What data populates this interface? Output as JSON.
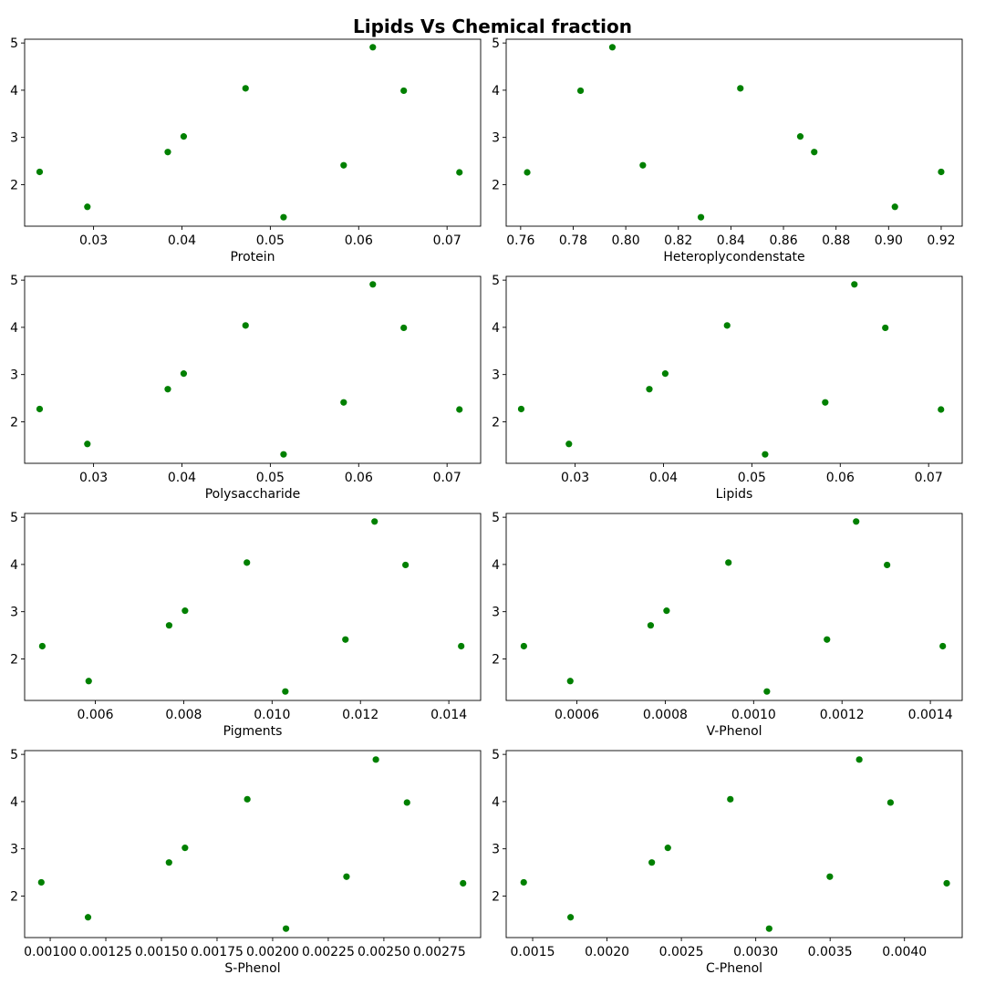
{
  "title": "Lipids Vs Chemical fraction",
  "colors": {
    "point": "#008000",
    "axis": "#000000",
    "background": "#ffffff"
  },
  "chart_data": [
    {
      "type": "scatter",
      "xlabel": "Protein",
      "grid": false,
      "xlim": [
        0.0222,
        0.0738
      ],
      "ylim": [
        1.12,
        5.08
      ],
      "xticks": [
        0.03,
        0.04,
        0.05,
        0.06,
        0.07
      ],
      "xtick_labels": [
        "0.03",
        "0.04",
        "0.05",
        "0.06",
        "0.07"
      ],
      "yticks": [
        2,
        3,
        4,
        5
      ],
      "ytick_labels": [
        "2",
        "3",
        "4",
        "5"
      ],
      "x": [
        0.0239,
        0.0293,
        0.0384,
        0.0402,
        0.0472,
        0.0515,
        0.0583,
        0.0616,
        0.0651,
        0.0714
      ],
      "y": [
        2.27,
        1.53,
        2.69,
        3.02,
        4.04,
        1.31,
        2.41,
        4.91,
        3.99,
        2.26
      ]
    },
    {
      "type": "scatter",
      "xlabel": "Heteroplycondenstate",
      "grid": false,
      "xlim": [
        0.7545,
        0.928
      ],
      "ylim": [
        1.12,
        5.08
      ],
      "xticks": [
        0.76,
        0.78,
        0.8,
        0.82,
        0.84,
        0.86,
        0.88,
        0.9,
        0.92
      ],
      "xtick_labels": [
        "0.76",
        "0.78",
        "0.80",
        "0.82",
        "0.84",
        "0.86",
        "0.88",
        "0.90",
        "0.92"
      ],
      "yticks": [
        2,
        3,
        4,
        5
      ],
      "ytick_labels": [
        "2",
        "3",
        "4",
        "5"
      ],
      "x": [
        0.7625,
        0.7828,
        0.7949,
        0.8065,
        0.8286,
        0.8436,
        0.8664,
        0.8717,
        0.9024,
        0.92
      ],
      "y": [
        2.26,
        3.99,
        4.91,
        2.41,
        1.31,
        4.04,
        3.02,
        2.69,
        1.53,
        2.27
      ]
    },
    {
      "type": "scatter",
      "xlabel": "Polysaccharide",
      "grid": false,
      "xlim": [
        0.0222,
        0.0738
      ],
      "ylim": [
        1.12,
        5.08
      ],
      "xticks": [
        0.03,
        0.04,
        0.05,
        0.06,
        0.07
      ],
      "xtick_labels": [
        "0.03",
        "0.04",
        "0.05",
        "0.06",
        "0.07"
      ],
      "yticks": [
        2,
        3,
        4,
        5
      ],
      "ytick_labels": [
        "2",
        "3",
        "4",
        "5"
      ],
      "x": [
        0.0239,
        0.0293,
        0.0384,
        0.0402,
        0.0472,
        0.0515,
        0.0583,
        0.0616,
        0.0651,
        0.0714
      ],
      "y": [
        2.27,
        1.53,
        2.69,
        3.02,
        4.04,
        1.31,
        2.41,
        4.91,
        3.99,
        2.26
      ]
    },
    {
      "type": "scatter",
      "xlabel": "Lipids",
      "grid": false,
      "xlim": [
        0.0222,
        0.0738
      ],
      "ylim": [
        1.12,
        5.08
      ],
      "xticks": [
        0.03,
        0.04,
        0.05,
        0.06,
        0.07
      ],
      "xtick_labels": [
        "0.03",
        "0.04",
        "0.05",
        "0.06",
        "0.07"
      ],
      "yticks": [
        2,
        3,
        4,
        5
      ],
      "ytick_labels": [
        "2",
        "3",
        "4",
        "5"
      ],
      "x": [
        0.0239,
        0.0293,
        0.0384,
        0.0402,
        0.0472,
        0.0515,
        0.0583,
        0.0616,
        0.0651,
        0.0714
      ],
      "y": [
        2.27,
        1.53,
        2.69,
        3.02,
        4.04,
        1.31,
        2.41,
        4.91,
        3.99,
        2.26
      ]
    },
    {
      "type": "scatter",
      "xlabel": "Pigments",
      "grid": false,
      "xlim": [
        0.0044,
        0.01472
      ],
      "ylim": [
        1.12,
        5.08
      ],
      "xticks": [
        0.006,
        0.008,
        0.01,
        0.012,
        0.014
      ],
      "xtick_labels": [
        "0.006",
        "0.008",
        "0.010",
        "0.012",
        "0.014"
      ],
      "yticks": [
        2,
        3,
        4,
        5
      ],
      "ytick_labels": [
        "2",
        "3",
        "4",
        "5"
      ],
      "x": [
        0.0048,
        0.00585,
        0.00767,
        0.00803,
        0.00943,
        0.0103,
        0.01166,
        0.01232,
        0.01302,
        0.01428
      ],
      "y": [
        2.27,
        1.53,
        2.71,
        3.02,
        4.04,
        1.31,
        2.41,
        4.91,
        3.99,
        2.27
      ]
    },
    {
      "type": "scatter",
      "xlabel": "V-Phenol",
      "grid": false,
      "xlim": [
        0.00044,
        0.001472
      ],
      "ylim": [
        1.12,
        5.08
      ],
      "xticks": [
        0.0006,
        0.0008,
        0.001,
        0.0012,
        0.0014
      ],
      "xtick_labels": [
        "0.0006",
        "0.0008",
        "0.0010",
        "0.0012",
        "0.0014"
      ],
      "yticks": [
        2,
        3,
        4,
        5
      ],
      "ytick_labels": [
        "2",
        "3",
        "4",
        "5"
      ],
      "x": [
        0.00048,
        0.000585,
        0.000767,
        0.000803,
        0.000943,
        0.00103,
        0.001166,
        0.001232,
        0.001302,
        0.001428
      ],
      "y": [
        2.27,
        1.53,
        2.71,
        3.02,
        4.04,
        1.31,
        2.41,
        4.91,
        3.99,
        2.27
      ]
    },
    {
      "type": "scatter",
      "xlabel": "S-Phenol",
      "grid": false,
      "xlim": [
        0.000885,
        0.002935
      ],
      "ylim": [
        1.12,
        5.08
      ],
      "xticks": [
        0.001,
        0.00125,
        0.0015,
        0.00175,
        0.002,
        0.00225,
        0.0025,
        0.00275
      ],
      "xtick_labels": [
        "0.00100",
        "0.00125",
        "0.00150",
        "0.00175",
        "0.00200",
        "0.00225",
        "0.00250",
        "0.00275"
      ],
      "yticks": [
        2,
        3,
        4,
        5
      ],
      "ytick_labels": [
        "2",
        "3",
        "4",
        "5"
      ],
      "x": [
        0.00096,
        0.00117,
        0.001534,
        0.001606,
        0.001886,
        0.00206,
        0.002332,
        0.002464,
        0.002604,
        0.002856
      ],
      "y": [
        2.29,
        1.55,
        2.71,
        3.02,
        4.05,
        1.31,
        2.41,
        4.89,
        3.98,
        2.27
      ]
    },
    {
      "type": "scatter",
      "xlabel": "C-Phenol",
      "grid": false,
      "xlim": [
        0.001322,
        0.004388
      ],
      "ylim": [
        1.12,
        5.08
      ],
      "xticks": [
        0.0015,
        0.002,
        0.0025,
        0.003,
        0.0035,
        0.004
      ],
      "xtick_labels": [
        "0.0015",
        "0.0020",
        "0.0025",
        "0.0030",
        "0.0035",
        "0.0040"
      ],
      "yticks": [
        2,
        3,
        4,
        5
      ],
      "ytick_labels": [
        "2",
        "3",
        "4",
        "5"
      ],
      "x": [
        0.00144,
        0.001755,
        0.002301,
        0.002409,
        0.002829,
        0.00309,
        0.003498,
        0.003696,
        0.003906,
        0.004284
      ],
      "y": [
        2.29,
        1.55,
        2.71,
        3.02,
        4.05,
        1.31,
        2.41,
        4.89,
        3.98,
        2.27
      ]
    }
  ]
}
